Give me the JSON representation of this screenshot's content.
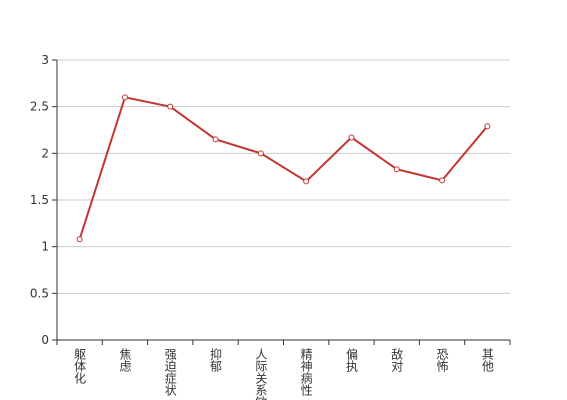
{
  "chart_data": {
    "type": "line",
    "categories": [
      "躯体化",
      "焦虑",
      "强迫症状",
      "抑郁",
      "人际关系敏感",
      "精神病性",
      "偏执",
      "敌对",
      "恐怖",
      "其他"
    ],
    "values": [
      1.08,
      2.6,
      2.5,
      2.15,
      2.0,
      1.7,
      2.17,
      1.83,
      1.71,
      2.29
    ],
    "color": "#c23531",
    "ylim": [
      0,
      3
    ],
    "yticks": [
      0,
      0.5,
      1,
      1.5,
      2,
      2.5,
      3
    ],
    "grid": true
  }
}
